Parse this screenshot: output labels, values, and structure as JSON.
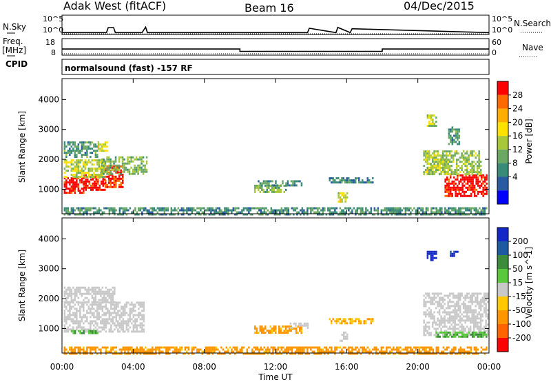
{
  "header": {
    "station": "Adak West (fitACF)",
    "beam": "Beam 16",
    "date": "04/Dec/2015"
  },
  "left_labels": {
    "nsky": "N.Sky",
    "freq_line1": "Freq.",
    "freq_line2": "[MHz]",
    "cpid": "CPID"
  },
  "right_labels": {
    "nsearch": "N.Search",
    "nave": "Nave"
  },
  "cpid_text": "normalsound (fast) -157 RF",
  "noise_axis": {
    "top": "10^5",
    "bottom": "10^0"
  },
  "freq_axis": {
    "ticks": [
      "18",
      "8"
    ]
  },
  "nave_axis": {
    "ticks": [
      "60",
      "0"
    ]
  },
  "panel_ylabel": "Slant Range [km]",
  "xlabel": "Time UT",
  "chart_data": [
    {
      "type": "line",
      "title": "Noise (N.Sky / N.Search)",
      "x_range_hours": [
        0,
        24
      ],
      "y_scale": "log",
      "y_range": [
        1,
        100000
      ],
      "series": [
        {
          "name": "N.Sky",
          "x": [
            0,
            2.5,
            2.6,
            2.9,
            3.0,
            4.5,
            4.7,
            4.8,
            13.8,
            13.9,
            15.4,
            15.5,
            16.2,
            16.3,
            24
          ],
          "y": [
            3,
            3,
            60,
            60,
            3,
            3,
            80,
            3,
            3,
            40,
            3,
            70,
            3,
            30,
            3
          ]
        },
        {
          "name": "N.Search",
          "x": [
            0,
            24
          ],
          "y": [
            1.5,
            1.5
          ]
        }
      ]
    },
    {
      "type": "line",
      "title": "Frequency / Nave",
      "x_range_hours": [
        0,
        24
      ],
      "series": [
        {
          "name": "Freq. [MHz]",
          "x": [
            0,
            10,
            10,
            18,
            18,
            24
          ],
          "y": [
            11.7,
            11.7,
            10.3,
            10.3,
            11.7,
            11.7
          ]
        },
        {
          "name": "Nave",
          "x": [
            0,
            24
          ],
          "y": [
            5,
            5
          ]
        }
      ]
    },
    {
      "type": "heatmap",
      "quantity": "Power",
      "colorbar_label": "Power [dB]",
      "colorbar_ticks": [
        "28",
        "24",
        "20",
        "16",
        "12",
        "8",
        "4"
      ],
      "colorbar_colors": [
        "#ff0000",
        "#ff6a00",
        "#ffae00",
        "#ffe100",
        "#a8c83a",
        "#6aa864",
        "#3a8a78",
        "#2a5aa0",
        "#0000ff"
      ],
      "x_ticks": [
        "00:00",
        "04:00",
        "08:00",
        "12:00",
        "16:00",
        "20:00",
        "00:00"
      ],
      "y_ticks": [
        "4000",
        "3000",
        "2000",
        "1000"
      ],
      "x_range_hours": [
        0,
        24
      ],
      "y_range_km": [
        180,
        4700
      ],
      "regions": [
        {
          "t0": 0.1,
          "t1": 1.2,
          "r0": 900,
          "r1": 1400,
          "value": 27
        },
        {
          "t0": 1.2,
          "t1": 2.4,
          "r0": 1000,
          "r1": 1500,
          "value": 26
        },
        {
          "t0": 2.4,
          "t1": 3.4,
          "r0": 1100,
          "r1": 1800,
          "value": 25
        },
        {
          "t0": 0.1,
          "t1": 2.4,
          "r0": 1400,
          "r1": 2000,
          "value": 13
        },
        {
          "t0": 2.2,
          "t1": 4.8,
          "r0": 1500,
          "r1": 2100,
          "value": 10
        },
        {
          "t0": 0.1,
          "t1": 2.0,
          "r0": 2100,
          "r1": 2600,
          "value": 7
        },
        {
          "t0": 2.0,
          "t1": 2.5,
          "r0": 2300,
          "r1": 2600,
          "value": 14
        },
        {
          "t0": 10.8,
          "t1": 12.6,
          "r0": 900,
          "r1": 1150,
          "value": 10
        },
        {
          "t0": 11.0,
          "t1": 13.5,
          "r0": 1150,
          "r1": 1300,
          "value": 6
        },
        {
          "t0": 15.0,
          "t1": 17.5,
          "r0": 1250,
          "r1": 1400,
          "value": 5
        },
        {
          "t0": 15.5,
          "t1": 16.0,
          "r0": 600,
          "r1": 900,
          "value": 14
        },
        {
          "t0": 20.5,
          "t1": 21.5,
          "r0": 1500,
          "r1": 2100,
          "value": 14
        },
        {
          "t0": 21.5,
          "t1": 23.9,
          "r0": 800,
          "r1": 1500,
          "value": 27
        },
        {
          "t0": 20.3,
          "t1": 23.5,
          "r0": 1500,
          "r1": 2300,
          "value": 11
        },
        {
          "t0": 20.5,
          "t1": 21.0,
          "r0": 3100,
          "r1": 3500,
          "value": 12
        },
        {
          "t0": 21.7,
          "t1": 22.3,
          "r0": 2500,
          "r1": 3100,
          "value": 7
        },
        {
          "t0": 0.1,
          "t1": 23.9,
          "r0": 180,
          "r1": 400,
          "value": 6
        }
      ]
    },
    {
      "type": "heatmap",
      "quantity": "Velocity",
      "colorbar_label": "Velocity [m s^-1]",
      "colorbar_ticks": [
        "200",
        "100",
        "50",
        "15",
        "-15",
        "-50",
        "-100",
        "-200"
      ],
      "colorbar_colors": [
        "#1428c8",
        "#1e5aa0",
        "#3c8c3c",
        "#5ac83c",
        "#c8c8c8",
        "#ffc800",
        "#ff9600",
        "#ff6400",
        "#ff0000"
      ],
      "x_ticks": [
        "00:00",
        "04:00",
        "08:00",
        "12:00",
        "16:00",
        "20:00",
        "00:00"
      ],
      "y_ticks": [
        "4000",
        "3000",
        "2000",
        "1000"
      ],
      "x_range_hours": [
        0,
        24
      ],
      "y_range_km": [
        180,
        4700
      ],
      "regions": [
        {
          "t0": 0.1,
          "t1": 4.6,
          "r0": 900,
          "r1": 1900,
          "value": 0
        },
        {
          "t0": 0.1,
          "t1": 3.0,
          "r0": 1900,
          "r1": 2400,
          "value": 5
        },
        {
          "t0": 0.5,
          "t1": 2.0,
          "r0": 850,
          "r1": 950,
          "value": 30
        },
        {
          "t0": 10.8,
          "t1": 13.5,
          "r0": 880,
          "r1": 1100,
          "value": -40
        },
        {
          "t0": 12.8,
          "t1": 13.8,
          "r0": 1050,
          "r1": 1200,
          "value": 0
        },
        {
          "t0": 15.0,
          "t1": 17.5,
          "r0": 1200,
          "r1": 1350,
          "value": -30
        },
        {
          "t0": 15.6,
          "t1": 16.0,
          "r0": 600,
          "r1": 900,
          "value": 0
        },
        {
          "t0": 20.3,
          "t1": 23.9,
          "r0": 800,
          "r1": 2200,
          "value": 0
        },
        {
          "t0": 20.5,
          "t1": 21.0,
          "r0": 3300,
          "r1": 3600,
          "value": 200
        },
        {
          "t0": 21.8,
          "t1": 22.2,
          "r0": 3400,
          "r1": 3600,
          "value": 150
        },
        {
          "t0": 21.0,
          "t1": 23.9,
          "r0": 700,
          "r1": 900,
          "value": 30
        },
        {
          "t0": 0.1,
          "t1": 23.9,
          "r0": 180,
          "r1": 400,
          "value": -40
        }
      ]
    }
  ]
}
